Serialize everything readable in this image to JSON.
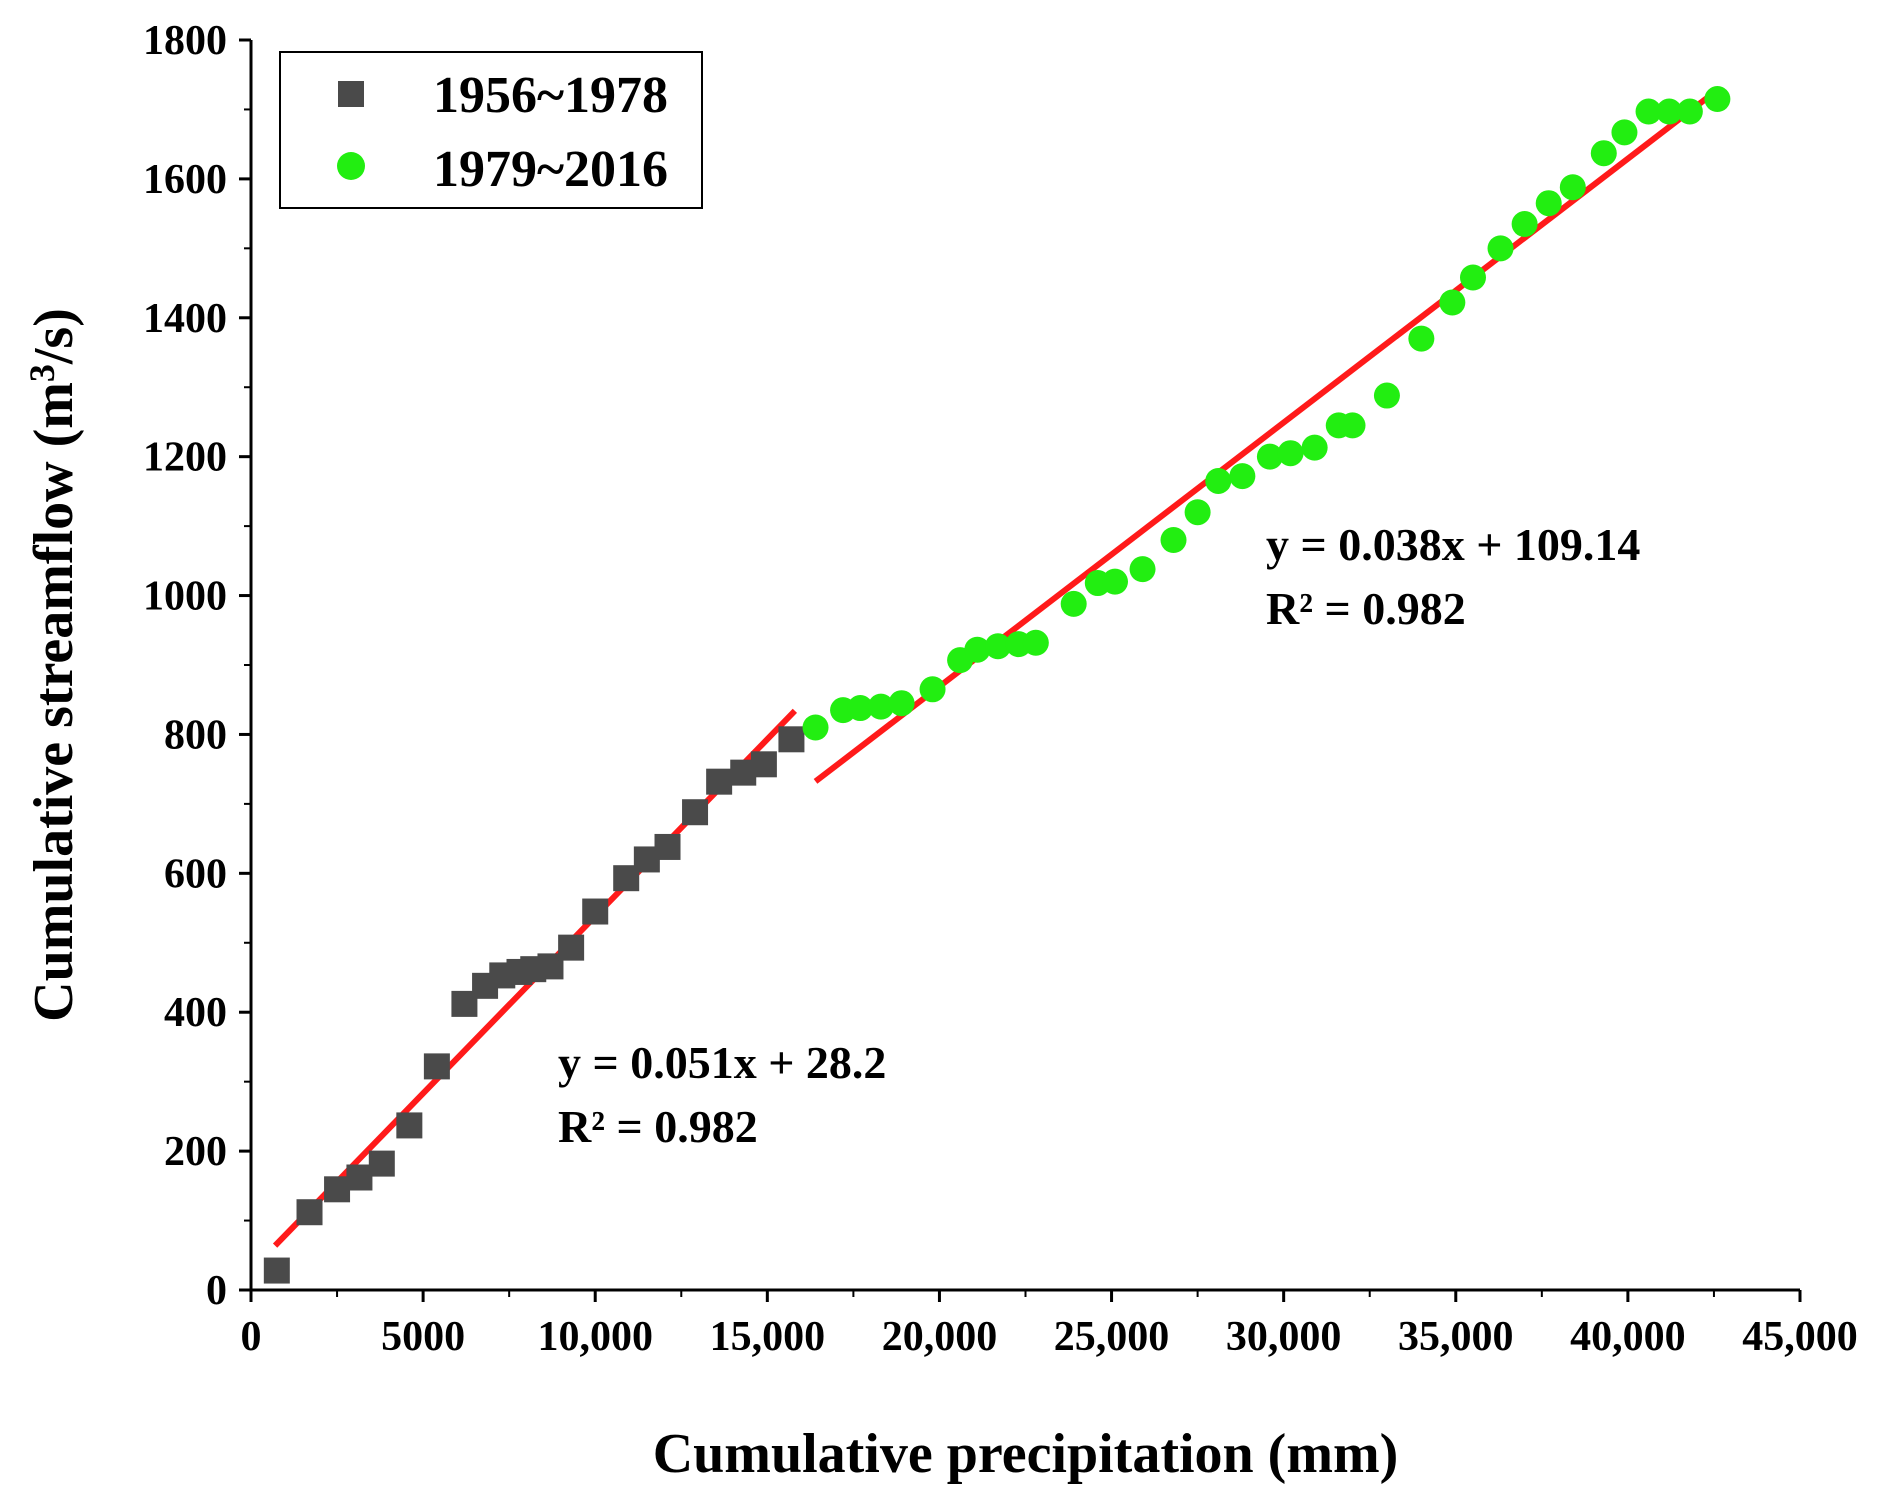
{
  "chart_data": {
    "type": "scatter",
    "title": "",
    "xlabel": "Cumulative precipitation (mm)",
    "ylabel_main": "Cumulative streamflow (m",
    "ylabel_sup": "3",
    "ylabel_end": "/s)",
    "xlim": [
      0,
      45000
    ],
    "ylim": [
      0,
      1800
    ],
    "x_ticks": [
      0,
      5000,
      10000,
      15000,
      20000,
      25000,
      30000,
      35000,
      40000,
      45000
    ],
    "x_tick_labels": [
      "0",
      "5000",
      "10,000",
      "15,000",
      "20,000",
      "25,000",
      "30,000",
      "35,000",
      "40,000",
      "45,000"
    ],
    "y_ticks": [
      0,
      200,
      400,
      600,
      800,
      1000,
      1200,
      1400,
      1600,
      1800
    ],
    "y_tick_labels": [
      "0",
      "200",
      "400",
      "600",
      "800",
      "1000",
      "1200",
      "1400",
      "1600",
      "1800"
    ],
    "legend_position": "top-left",
    "series": [
      {
        "name": "1956~1978",
        "marker": "square",
        "color": "#4a4a4a",
        "points": [
          [
            750,
            28
          ],
          [
            1700,
            112
          ],
          [
            2500,
            145
          ],
          [
            3150,
            162
          ],
          [
            3800,
            182
          ],
          [
            4600,
            237
          ],
          [
            5400,
            322
          ],
          [
            6200,
            412
          ],
          [
            6800,
            438
          ],
          [
            7300,
            453
          ],
          [
            7800,
            458
          ],
          [
            8200,
            462
          ],
          [
            8700,
            466
          ],
          [
            9300,
            493
          ],
          [
            10000,
            545
          ],
          [
            10900,
            593
          ],
          [
            11500,
            620
          ],
          [
            12100,
            638
          ],
          [
            12900,
            688
          ],
          [
            13600,
            732
          ],
          [
            14300,
            745
          ],
          [
            14900,
            757
          ],
          [
            15700,
            793
          ]
        ],
        "fit": {
          "equation": "y = 0.051x + 28.2",
          "r2": "R² = 0.982",
          "slope": 0.051,
          "intercept": 28.2,
          "x_range": [
            700,
            15800
          ]
        }
      },
      {
        "name": "1979~2016",
        "marker": "circle",
        "color": "#22ee11",
        "points": [
          [
            16400,
            810
          ],
          [
            17200,
            835
          ],
          [
            17700,
            838
          ],
          [
            18300,
            840
          ],
          [
            18900,
            845
          ],
          [
            19800,
            865
          ],
          [
            20600,
            907
          ],
          [
            21100,
            922
          ],
          [
            21700,
            927
          ],
          [
            22300,
            930
          ],
          [
            22800,
            932
          ],
          [
            23900,
            988
          ],
          [
            24600,
            1018
          ],
          [
            25100,
            1020
          ],
          [
            25900,
            1038
          ],
          [
            26800,
            1080
          ],
          [
            27500,
            1120
          ],
          [
            28100,
            1165
          ],
          [
            28800,
            1172
          ],
          [
            29600,
            1200
          ],
          [
            30200,
            1205
          ],
          [
            30900,
            1213
          ],
          [
            31600,
            1245
          ],
          [
            32000,
            1245
          ],
          [
            33000,
            1288
          ],
          [
            34000,
            1370
          ],
          [
            34900,
            1422
          ],
          [
            35500,
            1458
          ],
          [
            36300,
            1500
          ],
          [
            37000,
            1535
          ],
          [
            37700,
            1565
          ],
          [
            38400,
            1588
          ],
          [
            39300,
            1637
          ],
          [
            39900,
            1667
          ],
          [
            40600,
            1697
          ],
          [
            41200,
            1697
          ],
          [
            41800,
            1697
          ],
          [
            42600,
            1715
          ]
        ],
        "fit": {
          "equation": "y = 0.038x + 109.14",
          "r2": "R² = 0.982",
          "slope": 0.038,
          "intercept": 109.14,
          "x_range": [
            16400,
            42600
          ]
        }
      }
    ]
  }
}
